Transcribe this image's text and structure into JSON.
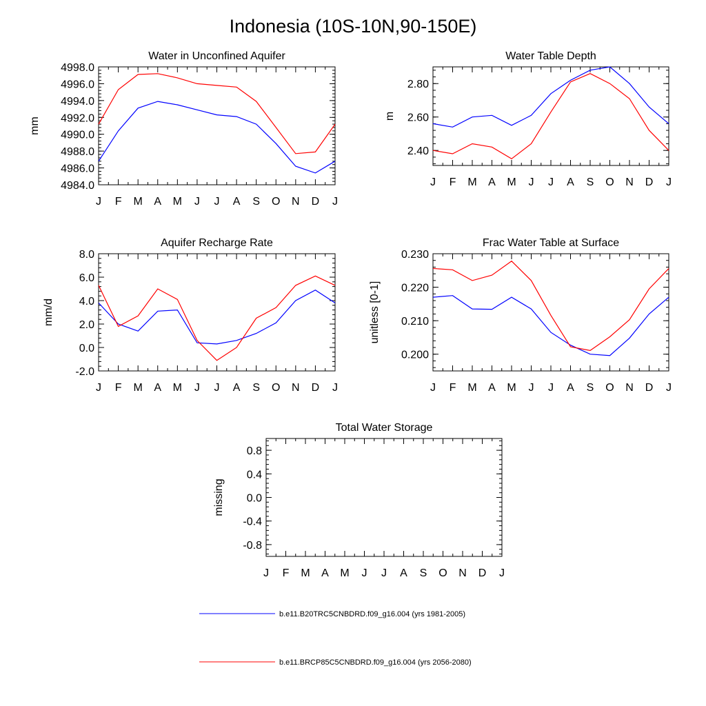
{
  "title": "Indonesia (10S-10N,90-150E)",
  "colors": {
    "series_1": "#0000ff",
    "series_2": "#ff0000",
    "axis": "#000000"
  },
  "legend": {
    "items": [
      {
        "label": "b.e11.B20TRC5CNBDRD.f09_g16.004 (yrs 1981-2005)",
        "color": "#0000ff"
      },
      {
        "label": "b.e11.BRCP85C5CNBDRD.f09_g16.004 (yrs 2056-2080)",
        "color": "#ff0000"
      }
    ]
  },
  "chart_data": [
    {
      "type": "line",
      "title": "Water in Unconfined Aquifer",
      "ylabel": "mm",
      "xlabel": "",
      "categories": [
        "J",
        "F",
        "M",
        "A",
        "M",
        "J",
        "J",
        "A",
        "S",
        "O",
        "N",
        "D",
        "J"
      ],
      "ylim": [
        4984.0,
        4998.0
      ],
      "yticks": [
        4984.0,
        4986.0,
        4988.0,
        4990.0,
        4992.0,
        4994.0,
        4996.0,
        4998.0
      ],
      "ytick_labels": [
        "4984.0",
        "4986.0",
        "4988.0",
        "4990.0",
        "4992.0",
        "4994.0",
        "4996.0",
        "4998.0"
      ],
      "series": [
        {
          "values": [
            4986.8,
            4990.4,
            4993.1,
            4993.9,
            4993.5,
            4992.9,
            4992.3,
            4992.1,
            4991.2,
            4988.9,
            4986.2,
            4985.4,
            4986.8
          ]
        },
        {
          "values": [
            4991.2,
            4995.3,
            4997.1,
            4997.2,
            4996.7,
            4996.0,
            4995.8,
            4995.6,
            4993.9,
            4990.8,
            4987.7,
            4987.9,
            4991.2
          ]
        }
      ]
    },
    {
      "type": "line",
      "title": "Water Table Depth",
      "ylabel": "m",
      "xlabel": "",
      "categories": [
        "J",
        "F",
        "M",
        "A",
        "M",
        "J",
        "J",
        "A",
        "S",
        "O",
        "N",
        "D",
        "J"
      ],
      "ylim": [
        2.31,
        2.9
      ],
      "yticks": [
        2.4,
        2.6,
        2.8
      ],
      "ytick_labels": [
        "2.40",
        "2.60",
        "2.80"
      ],
      "series": [
        {
          "values": [
            2.56,
            2.54,
            2.6,
            2.61,
            2.55,
            2.61,
            2.74,
            2.82,
            2.88,
            2.9,
            2.8,
            2.66,
            2.56
          ]
        },
        {
          "values": [
            2.4,
            2.38,
            2.44,
            2.42,
            2.35,
            2.44,
            2.63,
            2.81,
            2.86,
            2.8,
            2.71,
            2.52,
            2.4
          ]
        }
      ]
    },
    {
      "type": "line",
      "title": "Aquifer Recharge Rate",
      "ylabel": "mm/d",
      "xlabel": "",
      "categories": [
        "J",
        "F",
        "M",
        "A",
        "M",
        "J",
        "J",
        "A",
        "S",
        "O",
        "N",
        "D",
        "J"
      ],
      "ylim": [
        -2.0,
        8.0
      ],
      "yticks": [
        -2.0,
        0.0,
        2.0,
        4.0,
        6.0,
        8.0
      ],
      "ytick_labels": [
        "-2.0",
        "0.0",
        "2.0",
        "4.0",
        "6.0",
        "8.0"
      ],
      "series": [
        {
          "values": [
            3.8,
            2.0,
            1.4,
            3.1,
            3.2,
            0.4,
            0.3,
            0.6,
            1.2,
            2.1,
            4.0,
            4.9,
            3.8
          ]
        },
        {
          "values": [
            5.3,
            1.8,
            2.7,
            5.0,
            4.1,
            0.6,
            -1.1,
            0.0,
            2.5,
            3.4,
            5.3,
            6.1,
            5.3
          ]
        }
      ]
    },
    {
      "type": "line",
      "title": "Frac Water Table at Surface",
      "ylabel": "unitless [0-1]",
      "xlabel": "",
      "categories": [
        "J",
        "F",
        "M",
        "A",
        "M",
        "J",
        "J",
        "A",
        "S",
        "O",
        "N",
        "D",
        "J"
      ],
      "ylim": [
        0.195,
        0.23
      ],
      "yticks": [
        0.2,
        0.21,
        0.22,
        0.23
      ],
      "ytick_labels": [
        "0.200",
        "0.210",
        "0.220",
        "0.230"
      ],
      "series": [
        {
          "values": [
            0.217,
            0.2175,
            0.2135,
            0.2134,
            0.217,
            0.2135,
            0.2065,
            0.2027,
            0.2,
            0.1996,
            0.2048,
            0.212,
            0.217
          ]
        },
        {
          "values": [
            0.2256,
            0.2252,
            0.222,
            0.2236,
            0.2278,
            0.222,
            0.2116,
            0.2022,
            0.2011,
            0.2052,
            0.2103,
            0.2195,
            0.2256
          ]
        }
      ]
    },
    {
      "type": "line",
      "title": "Total Water Storage",
      "ylabel": "missing",
      "xlabel": "",
      "categories": [
        "J",
        "F",
        "M",
        "A",
        "M",
        "J",
        "J",
        "A",
        "S",
        "O",
        "N",
        "D",
        "J"
      ],
      "ylim": [
        -1.0,
        1.0
      ],
      "yticks": [
        -0.8,
        -0.4,
        0.0,
        0.4,
        0.8
      ],
      "ytick_labels": [
        "-0.8",
        "-0.4",
        "0.0",
        "0.4",
        "0.8"
      ],
      "series": []
    }
  ]
}
